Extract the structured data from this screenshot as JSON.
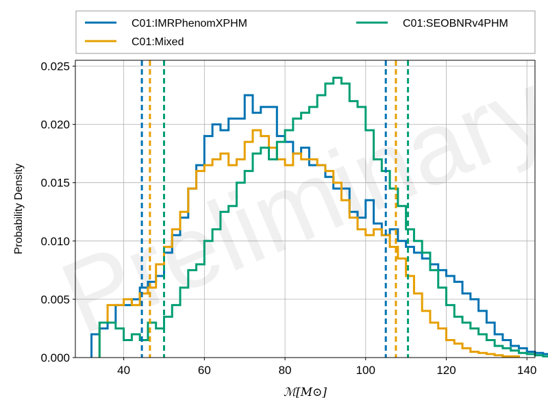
{
  "watermark": "Preliminary",
  "chart_data": {
    "type": "histogram",
    "xlabel": "ℳ[M⊙]",
    "ylabel": "Probability Density",
    "xlim": [
      28,
      142
    ],
    "ylim": [
      0,
      0.0255
    ],
    "xticks": [
      40,
      60,
      80,
      100,
      120,
      140
    ],
    "yticks": [
      0.0,
      0.005,
      0.01,
      0.015,
      0.02,
      0.025
    ],
    "ytick_labels": [
      "0.000",
      "0.005",
      "0.010",
      "0.015",
      "0.020",
      "0.025"
    ],
    "grid": true,
    "legend": {
      "placement": "top",
      "ncol": 2
    },
    "bin_width": 2,
    "series": [
      {
        "name": "C01:IMRPhenomXPHM",
        "color": "#0072b2",
        "bin_start": 32,
        "values": [
          0.002,
          0.0025,
          0.003,
          0.0045,
          0.0045,
          0.005,
          0.006,
          0.0065,
          0.007,
          0.009,
          0.0105,
          0.012,
          0.0145,
          0.0165,
          0.019,
          0.02,
          0.0195,
          0.0205,
          0.0205,
          0.0225,
          0.021,
          0.0215,
          0.0215,
          0.019,
          0.0185,
          0.0175,
          0.018,
          0.0165,
          0.0165,
          0.0155,
          0.0145,
          0.0145,
          0.0125,
          0.012,
          0.0135,
          0.0115,
          0.0105,
          0.011,
          0.01,
          0.0095,
          0.009,
          0.0085,
          0.008,
          0.0075,
          0.007,
          0.0065,
          0.0055,
          0.005,
          0.004,
          0.003,
          0.002,
          0.0015,
          0.001,
          0.0008,
          0.0005,
          0.0004,
          0.0003,
          0.0002,
          0.0001
        ]
      },
      {
        "name": "C01:Mixed",
        "color": "#e69f00",
        "bin_start": 34,
        "values": [
          0.003,
          0.0045,
          0.0045,
          0.005,
          0.0045,
          0.0055,
          0.006,
          0.008,
          0.0095,
          0.011,
          0.0125,
          0.0145,
          0.016,
          0.0165,
          0.017,
          0.0175,
          0.0165,
          0.017,
          0.0185,
          0.0195,
          0.019,
          0.018,
          0.017,
          0.0165,
          0.0175,
          0.017,
          0.017,
          0.0165,
          0.016,
          0.015,
          0.0135,
          0.012,
          0.011,
          0.0105,
          0.011,
          0.0105,
          0.0095,
          0.0085,
          0.007,
          0.0055,
          0.004,
          0.003,
          0.0025,
          0.0015,
          0.0012,
          0.0008,
          0.0005,
          0.0004,
          0.0003,
          0.0002,
          0.0001,
          0.0001
        ]
      },
      {
        "name": "C01:SEOBNRv4PHM",
        "color": "#009e73",
        "bin_start": 34,
        "values": [
          0.003,
          0.003,
          0.0025,
          0.0015,
          0.002,
          0.0015,
          0.003,
          0.0025,
          0.0035,
          0.0045,
          0.006,
          0.0075,
          0.008,
          0.01,
          0.011,
          0.0125,
          0.013,
          0.015,
          0.016,
          0.0175,
          0.018,
          0.017,
          0.0185,
          0.0195,
          0.0205,
          0.021,
          0.0215,
          0.0225,
          0.0235,
          0.024,
          0.0235,
          0.022,
          0.0215,
          0.0195,
          0.017,
          0.016,
          0.0145,
          0.013,
          0.011,
          0.01,
          0.009,
          0.0075,
          0.006,
          0.0045,
          0.0035,
          0.003,
          0.0025,
          0.002,
          0.0015,
          0.001,
          0.0008,
          0.0006,
          0.0004,
          0.0003,
          0.0002,
          0.0001
        ]
      }
    ],
    "intervals": [
      {
        "series": "C01:IMRPhenomXPHM",
        "color": "#0072b2",
        "values": [
          44.5,
          105
        ]
      },
      {
        "series": "C01:Mixed",
        "color": "#e69f00",
        "values": [
          46.5,
          107.5
        ]
      },
      {
        "series": "C01:SEOBNRv4PHM",
        "color": "#009e73",
        "values": [
          50,
          110.5
        ]
      }
    ]
  }
}
